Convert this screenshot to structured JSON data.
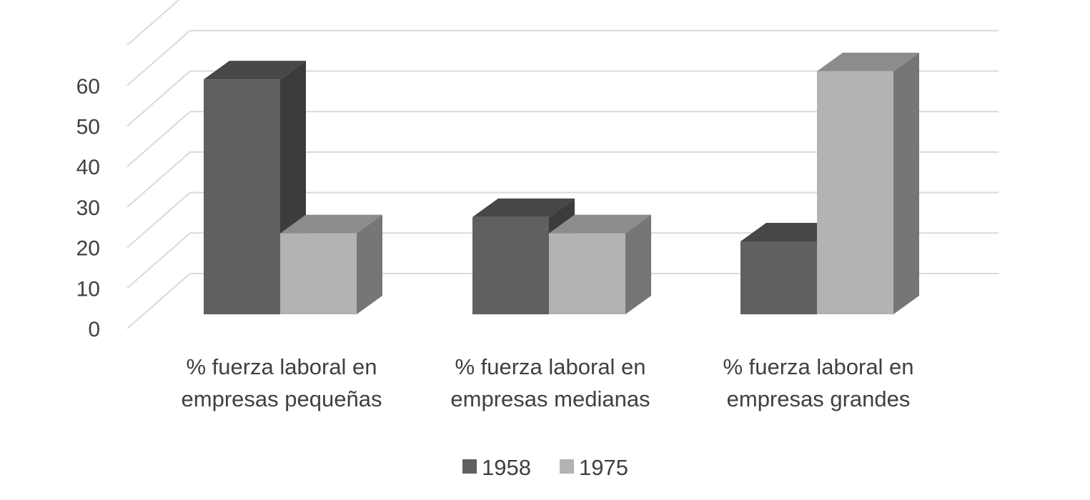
{
  "chart_data": {
    "type": "bar",
    "variant": "3d-clustered-column",
    "categories": [
      [
        "% fuerza laboral en",
        "empresas pequeñas"
      ],
      [
        "% fuerza laboral en",
        "empresas medianas"
      ],
      [
        "% fuerza laboral en",
        "empresas grandes"
      ]
    ],
    "series": [
      {
        "name": "1958",
        "values": [
          58,
          24,
          18
        ],
        "color": "#606060",
        "top_color": "#474747",
        "side_color": "#3c3c3c"
      },
      {
        "name": "1975",
        "values": [
          20,
          20,
          60
        ],
        "color": "#b3b3b3",
        "top_color": "#8c8c8c",
        "side_color": "#767676"
      }
    ],
    "ylim": [
      0,
      60
    ],
    "yticks": [
      0,
      10,
      20,
      30,
      40,
      50,
      60
    ],
    "grid": true,
    "legend_position": "bottom",
    "title": "",
    "xlabel": "",
    "ylabel": ""
  }
}
